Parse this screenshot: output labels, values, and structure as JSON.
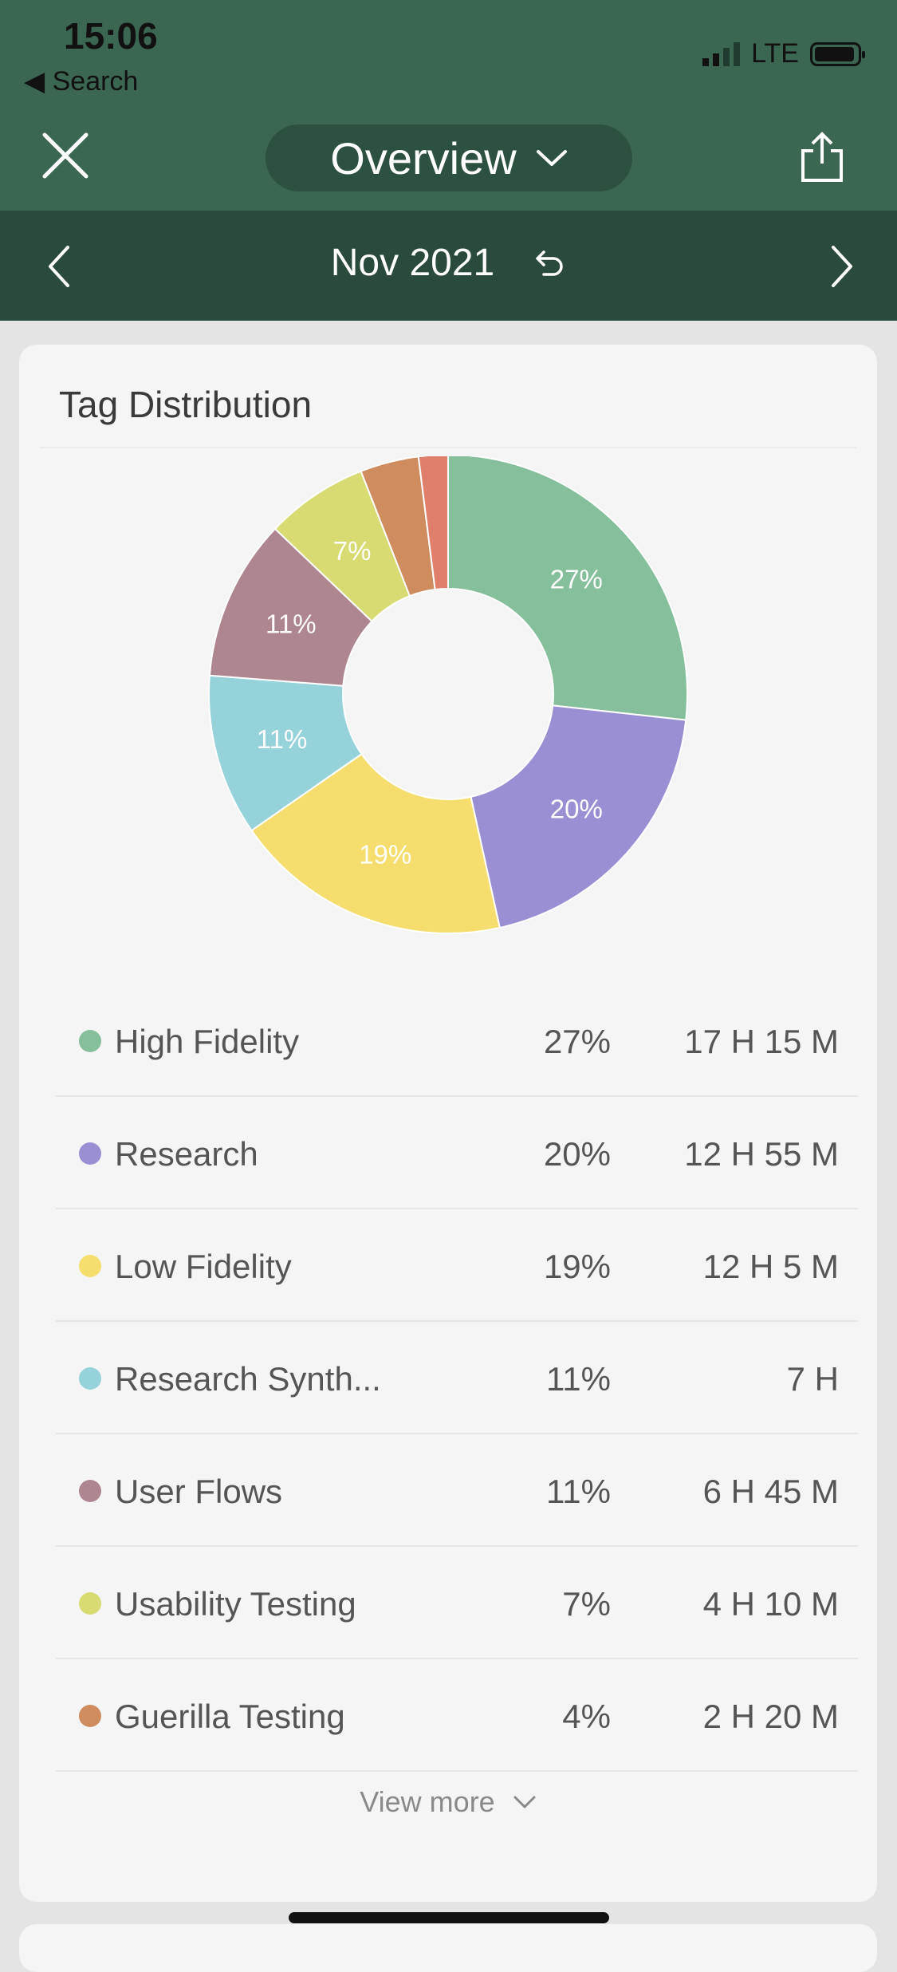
{
  "status_bar": {
    "time": "15:06",
    "back_label": "Search",
    "network": "LTE"
  },
  "header": {
    "title": "Overview"
  },
  "date_nav": {
    "label": "Nov 2021"
  },
  "card": {
    "title": "Tag Distribution",
    "view_more": "View more"
  },
  "chart_data": {
    "type": "pie",
    "donut": true,
    "slices": [
      {
        "name": "High Fidelity",
        "value": 27,
        "label": "27%",
        "color": "#86bf9b"
      },
      {
        "name": "Research",
        "value": 20,
        "label": "20%",
        "color": "#9b8fd4"
      },
      {
        "name": "Low Fidelity",
        "value": 19,
        "label": "19%",
        "color": "#f5de6e"
      },
      {
        "name": "Research Synth...",
        "value": 11,
        "label": "11%",
        "color": "#96d2da"
      },
      {
        "name": "User Flows",
        "value": 11,
        "label": "11%",
        "color": "#ad8690"
      },
      {
        "name": "Usability Testing",
        "value": 7,
        "label": "7%",
        "color": "#d8db72"
      },
      {
        "name": "Guerilla Testing",
        "value": 4,
        "label": "",
        "color": "#cf8d5f"
      },
      {
        "name": "",
        "value": 2,
        "label": "",
        "color": "#e07f6c"
      }
    ]
  },
  "legend": [
    {
      "name": "High Fidelity",
      "pct": "27%",
      "time": "17 H 15 M",
      "color": "#86bf9b"
    },
    {
      "name": "Research",
      "pct": "20%",
      "time": "12 H 55 M",
      "color": "#9b8fd4"
    },
    {
      "name": "Low Fidelity",
      "pct": "19%",
      "time": "12 H 5 M",
      "color": "#f5de6e"
    },
    {
      "name": "Research Synth...",
      "pct": "11%",
      "time": "7 H",
      "color": "#96d2da"
    },
    {
      "name": "User Flows",
      "pct": "11%",
      "time": "6 H 45 M",
      "color": "#ad8690"
    },
    {
      "name": "Usability Testing",
      "pct": "7%",
      "time": "4 H 10 M",
      "color": "#d8db72"
    },
    {
      "name": "Guerilla Testing",
      "pct": "4%",
      "time": "2 H 20 M",
      "color": "#cf8d5f"
    }
  ],
  "colors": {
    "header": "#3b6651",
    "date_bar": "#2a4a3b",
    "pill": "#2d5141"
  }
}
